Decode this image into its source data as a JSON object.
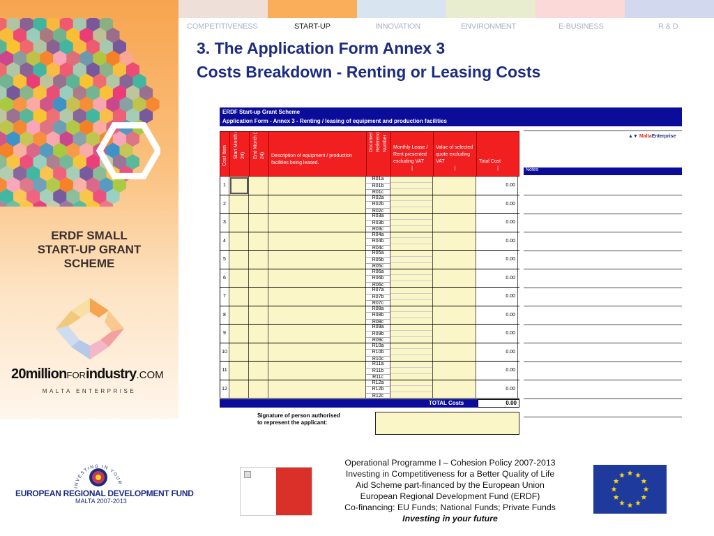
{
  "colors": {
    "strip": [
      "#eedfd9",
      "#fbae5a",
      "#d9e4f1",
      "#e7edce",
      "#fbd9d9",
      "#d2d9ee"
    ],
    "heading": "#1b2b80",
    "form_blue": "#0c0c9a",
    "form_red": "#f21f21",
    "input_yellow": "#fbf6c8",
    "malta_red": "#d9302a",
    "eu_blue": "#1e3a9c",
    "eu_gold": "#f7d51b"
  },
  "nav": [
    {
      "label": "COMPETITIVENESS",
      "active": false
    },
    {
      "label": "START-UP",
      "active": true
    },
    {
      "label": "INNOVATION",
      "active": false
    },
    {
      "label": "ENVIRONMENT",
      "active": false
    },
    {
      "label": "E-BUSINESS",
      "active": false
    },
    {
      "label": "R & D",
      "active": false
    }
  ],
  "left_panel": {
    "title_lines": [
      "ERDF SMALL",
      "START-UP GRANT",
      "SCHEME"
    ],
    "brand_a": "20million",
    "brand_b": "FOR",
    "brand_c": "industry",
    "brand_d": ".COM",
    "tagline": "MALTA ENTERPRISE"
  },
  "heading": {
    "line1": "3. The Application Form Annex 3",
    "line2": "Costs Breakdown - Renting or Leasing Costs"
  },
  "form": {
    "title": "ERDF Start-up Grant Scheme",
    "subtitle": "Application Form - Annex 3 - Renting / leasing of equipment and production facilities",
    "columns": {
      "cost_item": "Cost Item",
      "start_month": "Start Month (1 to 24)",
      "end_month": "End Month (1 to 24)",
      "description": "Description of equipment / production facilities being leased.",
      "doc_ref": "Document Reference Number",
      "monthly": "Monthly Lease / Rent presented excluding VAT",
      "monthly_unit": "|",
      "selected": "Value of selected quote excluding VAT",
      "selected_unit": "|",
      "total": "Total Cost",
      "total_unit": "|"
    },
    "rows": [
      {
        "num": "1",
        "refs": [
          "R01a",
          "R01b",
          "R01c"
        ],
        "total": "0.00"
      },
      {
        "num": "2",
        "refs": [
          "R02a",
          "R02b",
          "R02c"
        ],
        "total": "0.00"
      },
      {
        "num": "3",
        "refs": [
          "R03a",
          "R03b",
          "R03c"
        ],
        "total": "0.00"
      },
      {
        "num": "4",
        "refs": [
          "R04a",
          "R04b",
          "R04c"
        ],
        "total": "0.00"
      },
      {
        "num": "5",
        "refs": [
          "R05a",
          "R05b",
          "R05c"
        ],
        "total": "0.00"
      },
      {
        "num": "6",
        "refs": [
          "R06a",
          "R06b",
          "R06c"
        ],
        "total": "0.00"
      },
      {
        "num": "7",
        "refs": [
          "R07a",
          "R07b",
          "R07c"
        ],
        "total": "0.00"
      },
      {
        "num": "8",
        "refs": [
          "R08a",
          "R08b",
          "R08c"
        ],
        "total": "0.00"
      },
      {
        "num": "9",
        "refs": [
          "R09a",
          "R09b",
          "R09c"
        ],
        "total": "0.00"
      },
      {
        "num": "10",
        "refs": [
          "R10a",
          "R10b",
          "R10c"
        ],
        "total": "0.00"
      },
      {
        "num": "11",
        "refs": [
          "R11a",
          "R11b",
          "R11c"
        ],
        "total": "0.00"
      },
      {
        "num": "12",
        "refs": [
          "R12a",
          "R12b",
          "R12c"
        ],
        "total": "0.00"
      }
    ],
    "total_label": "TOTAL Costs",
    "total_value": "0.00",
    "signature_line1": "Signature of person authorised",
    "signature_line2": "to represent the applicant:",
    "notes_label": "Notes",
    "malta_enterprise_a": "Malta",
    "malta_enterprise_b": "Enterprise"
  },
  "footer": {
    "erdf_name": "EUROPEAN REGIONAL DEVELOPMENT FUND",
    "erdf_sub": "MALTA 2007-2013",
    "erdf_ring": "INVESTING IN YOUR FUTURE",
    "lines": [
      "Operational Programme I – Cohesion Policy 2007-2013",
      "Investing in Competitiveness for a Better Quality of Life",
      "Aid Scheme part-financed by the European Union",
      "European Regional Development Fund (ERDF)",
      "Co-financing: EU Funds; National Funds; Private Funds"
    ],
    "motto": "Investing in your future"
  }
}
